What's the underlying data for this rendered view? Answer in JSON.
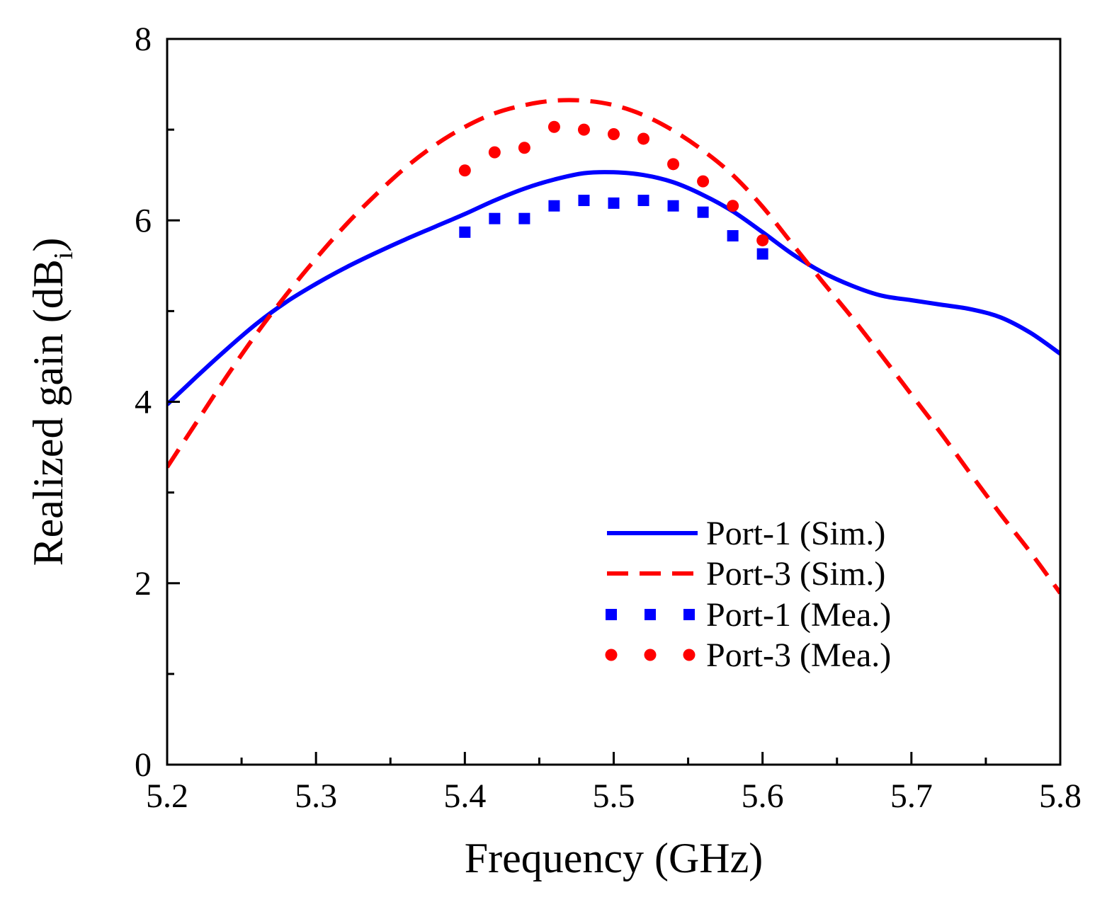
{
  "chart_data": {
    "type": "line",
    "title": "",
    "xlabel": "Frequency (GHz)",
    "ylabel_main": "Realized gain (dB",
    "ylabel_sub": "i",
    "ylabel_close": ")",
    "xlim": [
      5.2,
      5.8
    ],
    "ylim": [
      0,
      8
    ],
    "grid": false,
    "legend_position": "bottom-right",
    "x_ticks": [
      5.2,
      5.3,
      5.4,
      5.5,
      5.6,
      5.7,
      5.8
    ],
    "x_tick_labels": [
      "5.2",
      "5.3",
      "5.4",
      "5.5",
      "5.6",
      "5.7",
      "5.8"
    ],
    "x_minor_ticks": [
      5.25,
      5.35,
      5.45,
      5.55,
      5.65,
      5.75
    ],
    "y_ticks": [
      0,
      2,
      4,
      6,
      8
    ],
    "y_tick_labels": [
      "0",
      "2",
      "4",
      "6",
      "8"
    ],
    "y_minor_ticks": [
      1,
      3,
      5,
      7
    ],
    "series": [
      {
        "name": "Port-1 (Sim.)",
        "style": "solid",
        "marker": "none",
        "color": "#0000FF",
        "x": [
          5.2,
          5.22,
          5.24,
          5.26,
          5.28,
          5.3,
          5.32,
          5.34,
          5.36,
          5.38,
          5.4,
          5.42,
          5.44,
          5.46,
          5.48,
          5.5,
          5.52,
          5.54,
          5.56,
          5.58,
          5.6,
          5.62,
          5.64,
          5.66,
          5.68,
          5.7,
          5.72,
          5.74,
          5.76,
          5.78,
          5.8
        ],
        "y": [
          3.97,
          4.28,
          4.58,
          4.86,
          5.1,
          5.3,
          5.48,
          5.64,
          5.79,
          5.93,
          6.07,
          6.22,
          6.35,
          6.45,
          6.52,
          6.53,
          6.5,
          6.42,
          6.28,
          6.1,
          5.87,
          5.63,
          5.43,
          5.28,
          5.17,
          5.12,
          5.07,
          5.02,
          4.93,
          4.76,
          4.53
        ]
      },
      {
        "name": "Port-3 (Sim.)",
        "style": "dashed",
        "marker": "none",
        "color": "#FF0000",
        "x": [
          5.2,
          5.22,
          5.24,
          5.26,
          5.28,
          5.3,
          5.32,
          5.34,
          5.36,
          5.38,
          5.4,
          5.42,
          5.44,
          5.46,
          5.48,
          5.5,
          5.52,
          5.54,
          5.56,
          5.58,
          5.6,
          5.62,
          5.64,
          5.66,
          5.68,
          5.7,
          5.72,
          5.74,
          5.76,
          5.78,
          5.8
        ],
        "y": [
          3.28,
          3.78,
          4.28,
          4.75,
          5.18,
          5.58,
          5.95,
          6.28,
          6.58,
          6.83,
          7.03,
          7.18,
          7.27,
          7.32,
          7.32,
          7.27,
          7.16,
          6.99,
          6.77,
          6.5,
          6.15,
          5.74,
          5.33,
          4.93,
          4.51,
          4.08,
          3.65,
          3.2,
          2.76,
          2.34,
          1.89
        ]
      },
      {
        "name": "Port-1 (Mea.)",
        "style": "none",
        "marker": "square",
        "color": "#0000FF",
        "x": [
          5.4,
          5.42,
          5.44,
          5.46,
          5.48,
          5.5,
          5.52,
          5.54,
          5.56,
          5.58,
          5.6
        ],
        "y": [
          5.87,
          6.02,
          6.02,
          6.16,
          6.22,
          6.19,
          6.22,
          6.16,
          6.09,
          5.83,
          5.63
        ]
      },
      {
        "name": "Port-3 (Mea.)",
        "style": "none",
        "marker": "circle",
        "color": "#FF0000",
        "x": [
          5.4,
          5.42,
          5.44,
          5.46,
          5.48,
          5.5,
          5.52,
          5.54,
          5.56,
          5.58,
          5.6
        ],
        "y": [
          6.55,
          6.75,
          6.8,
          7.03,
          7.0,
          6.95,
          6.9,
          6.62,
          6.43,
          6.16,
          5.78
        ]
      }
    ]
  }
}
